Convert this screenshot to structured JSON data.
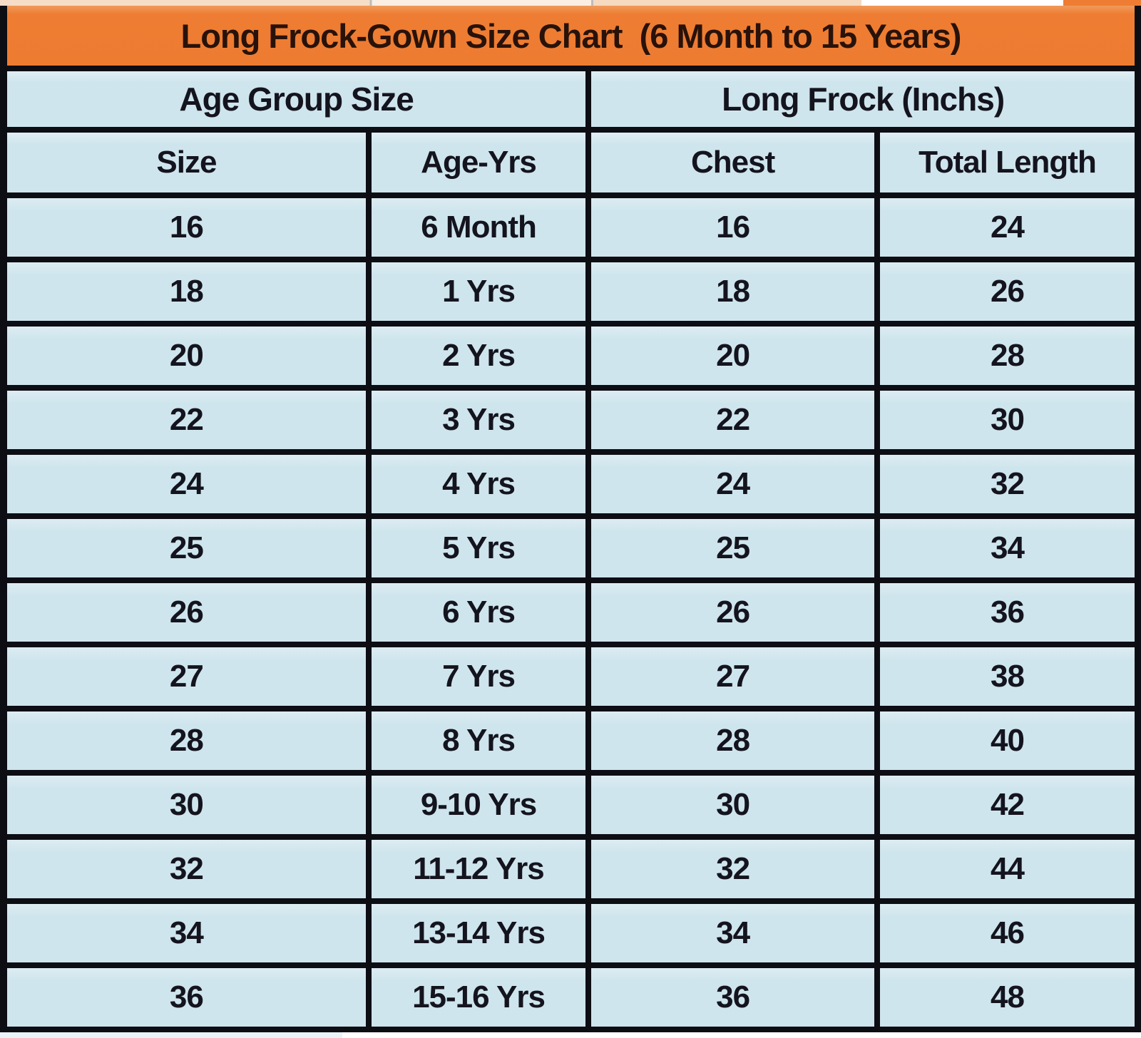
{
  "title": "Long Frock-Gown Size Chart  (6 Month to 15 Years)",
  "colors": {
    "banner_orange": "#ed7c31",
    "cell_blue": "#cfe5ed",
    "border_black": "#0d0d14",
    "text_dark": "#14141e"
  },
  "chart_data": {
    "type": "table",
    "title": "Long Frock-Gown Size Chart (6 Month to 15 Years)",
    "column_groups": [
      {
        "label": "Age Group Size",
        "columns": [
          "Size",
          "Age-Yrs"
        ]
      },
      {
        "label": "Long Frock (Inchs)",
        "columns": [
          "Chest",
          "Total Length"
        ]
      }
    ],
    "columns": [
      "Size",
      "Age-Yrs",
      "Chest",
      "Total Length"
    ],
    "rows": [
      [
        "16",
        "6 Month",
        "16",
        "24"
      ],
      [
        "18",
        "1 Yrs",
        "18",
        "26"
      ],
      [
        "20",
        "2 Yrs",
        "20",
        "28"
      ],
      [
        "22",
        "3 Yrs",
        "22",
        "30"
      ],
      [
        "24",
        "4 Yrs",
        "24",
        "32"
      ],
      [
        "25",
        "5 Yrs",
        "25",
        "34"
      ],
      [
        "26",
        "6 Yrs",
        "26",
        "36"
      ],
      [
        "27",
        "7 Yrs",
        "27",
        "38"
      ],
      [
        "28",
        "8 Yrs",
        "28",
        "40"
      ],
      [
        "30",
        "9-10 Yrs",
        "30",
        "42"
      ],
      [
        "32",
        "11-12 Yrs",
        "32",
        "44"
      ],
      [
        "34",
        "13-14 Yrs",
        "34",
        "46"
      ],
      [
        "36",
        "15-16 Yrs",
        "36",
        "48"
      ]
    ]
  }
}
